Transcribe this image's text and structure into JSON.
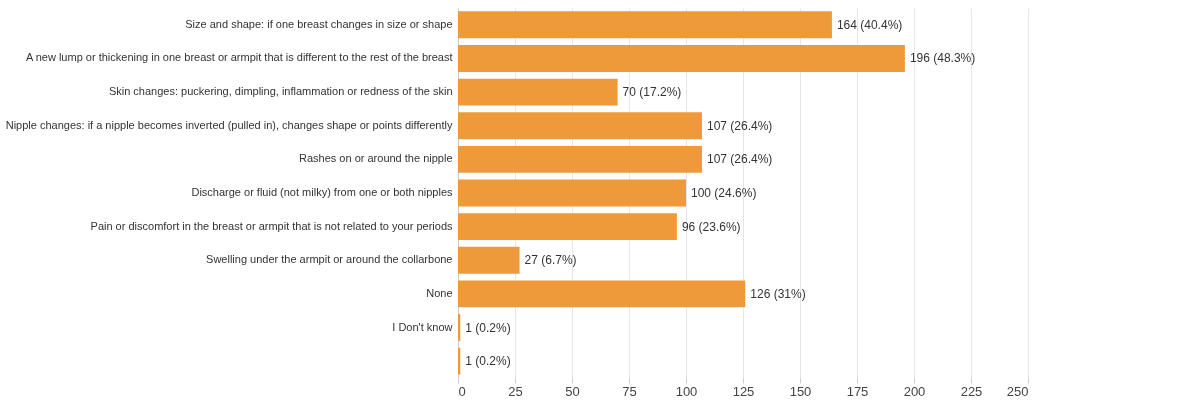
{
  "chart_data": {
    "type": "bar",
    "orientation": "horizontal",
    "categories": [
      "Size and shape: if one breast changes in size or shape",
      "A new lump or thickening in one breast or armpit that is different to the rest of the breast",
      "Skin changes: puckering, dimpling, inflammation or redness of the skin",
      "Nipple changes: if a nipple becomes inverted (pulled in), changes shape or points differently",
      "Rashes on or around the nipple",
      "Discharge or fluid (not milky) from one or both nipples",
      "Pain or discomfort in the breast or armpit that is not related to your periods",
      "Swelling under the armpit or around the collarbone",
      "None",
      "I Don't know",
      null
    ],
    "values": [
      164,
      196,
      70,
      107,
      107,
      100,
      96,
      27,
      126,
      1,
      1
    ],
    "value_labels": [
      "164 (40.4%)",
      "196 (48.3%)",
      "70 (17.2%)",
      "107 (26.4%)",
      "107 (26.4%)",
      "100 (24.6%)",
      "96 (23.6%)",
      "27 (6.7%)",
      "126 (31%)",
      "1 (0.2%)",
      "1 (0.2%)"
    ],
    "color": "#ee9a3a",
    "xlim": [
      0,
      250
    ],
    "xticks": [
      0,
      25,
      50,
      75,
      100,
      125,
      150,
      175,
      200,
      225,
      250
    ],
    "grid": "x"
  }
}
